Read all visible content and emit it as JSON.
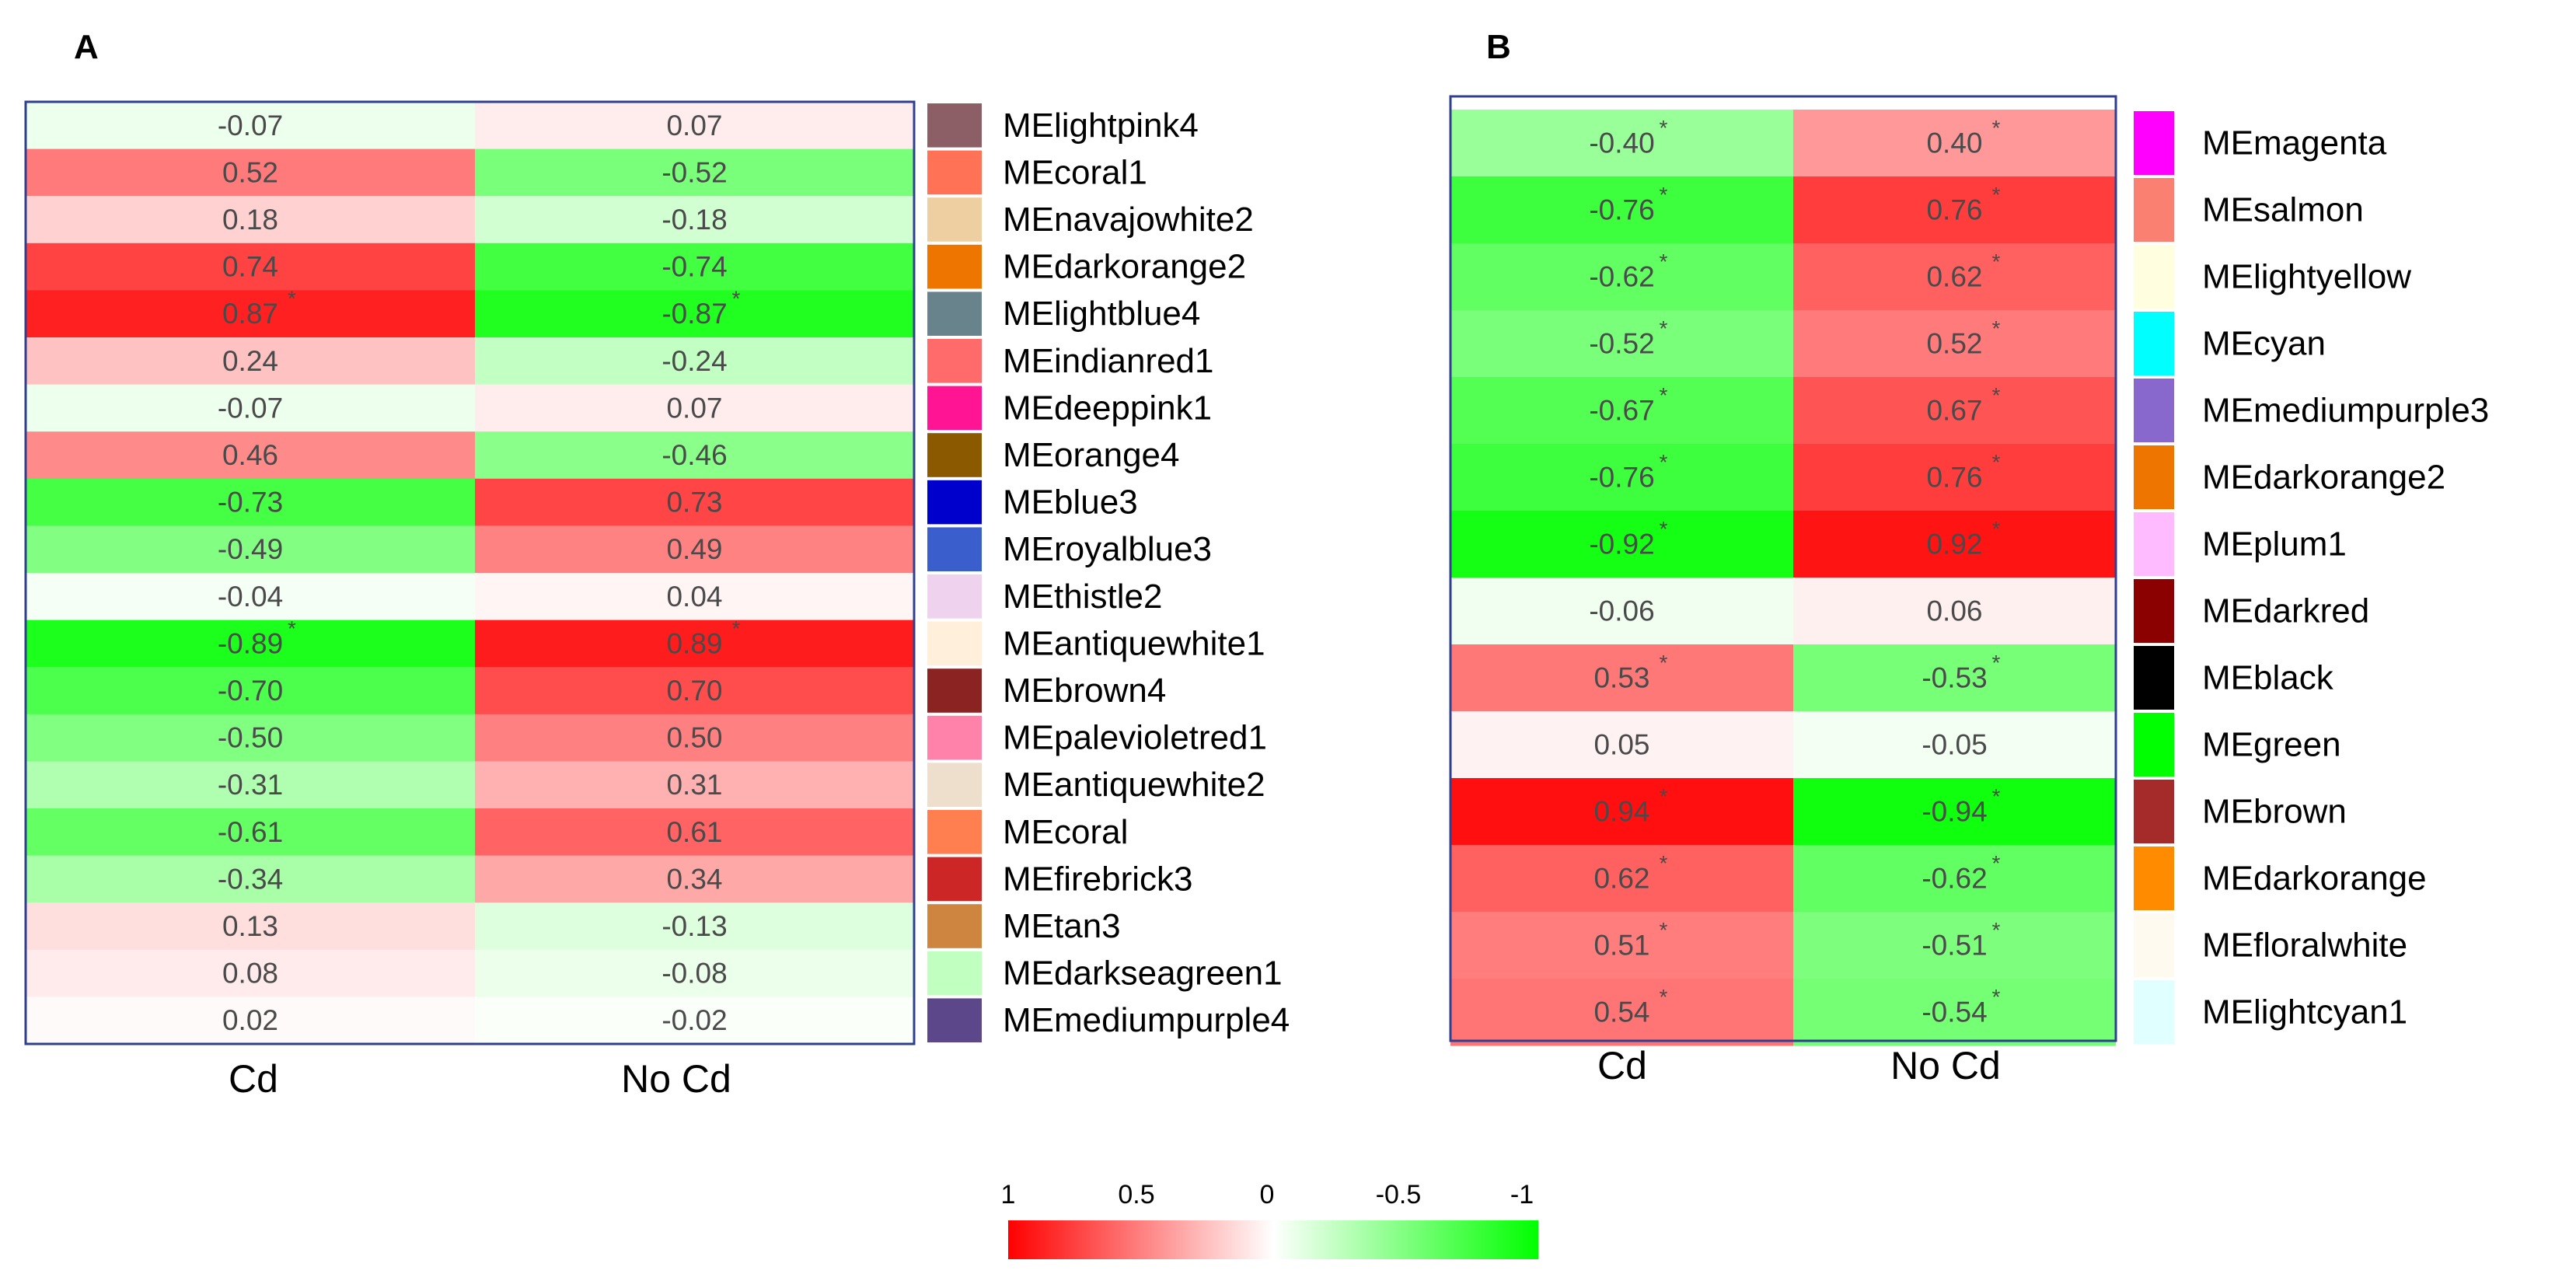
{
  "chart_data": [
    {
      "type": "heatmap",
      "panel_label": "A",
      "columns": [
        "Cd",
        "No Cd"
      ],
      "rows": [
        {
          "module": "MElightpink4",
          "color": "#8B5F65",
          "values": [
            -0.07,
            0.07
          ],
          "labels": [
            "-0.07",
            "0.07"
          ],
          "sig": [
            false,
            false
          ]
        },
        {
          "module": "MEcoral1",
          "color": "#FF7256",
          "values": [
            0.52,
            -0.52
          ],
          "labels": [
            "0.52",
            "-0.52"
          ],
          "sig": [
            false,
            false
          ]
        },
        {
          "module": "MEnavajowhite2",
          "color": "#EECFA1",
          "values": [
            0.18,
            -0.18
          ],
          "labels": [
            "0.18",
            "-0.18"
          ],
          "sig": [
            false,
            false
          ]
        },
        {
          "module": "MEdarkorange2",
          "color": "#EE7600",
          "values": [
            0.74,
            -0.74
          ],
          "labels": [
            "0.74",
            "-0.74"
          ],
          "sig": [
            false,
            false
          ]
        },
        {
          "module": "MElightblue4",
          "color": "#68838B",
          "values": [
            0.87,
            -0.87
          ],
          "labels": [
            "0.87",
            "-0.87"
          ],
          "sig": [
            true,
            true
          ]
        },
        {
          "module": "MEindianred1",
          "color": "#FF6A6A",
          "values": [
            0.24,
            -0.24
          ],
          "labels": [
            "0.24",
            "-0.24"
          ],
          "sig": [
            false,
            false
          ]
        },
        {
          "module": "MEdeeppink1",
          "color": "#FF1493",
          "values": [
            -0.07,
            0.07
          ],
          "labels": [
            "-0.07",
            "0.07"
          ],
          "sig": [
            false,
            false
          ]
        },
        {
          "module": "MEorange4",
          "color": "#8B5A00",
          "values": [
            0.46,
            -0.46
          ],
          "labels": [
            "0.46",
            "-0.46"
          ],
          "sig": [
            false,
            false
          ]
        },
        {
          "module": "MEblue3",
          "color": "#0000CD",
          "values": [
            -0.73,
            0.73
          ],
          "labels": [
            "-0.73",
            "0.73"
          ],
          "sig": [
            false,
            false
          ]
        },
        {
          "module": "MEroyalblue3",
          "color": "#3A5FCD",
          "values": [
            -0.49,
            0.49
          ],
          "labels": [
            "-0.49",
            "0.49"
          ],
          "sig": [
            false,
            false
          ]
        },
        {
          "module": "MEthistle2",
          "color": "#EED2EE",
          "values": [
            -0.04,
            0.04
          ],
          "labels": [
            "-0.04",
            "0.04"
          ],
          "sig": [
            false,
            false
          ]
        },
        {
          "module": "MEantiquewhite1",
          "color": "#FFEFDB",
          "values": [
            -0.89,
            0.89
          ],
          "labels": [
            "-0.89",
            "0.89"
          ],
          "sig": [
            true,
            true
          ]
        },
        {
          "module": "MEbrown4",
          "color": "#8B2323",
          "values": [
            -0.7,
            0.7
          ],
          "labels": [
            "-0.70",
            "0.70"
          ],
          "sig": [
            false,
            false
          ]
        },
        {
          "module": "MEpalevioletred1",
          "color": "#FF82AB",
          "values": [
            -0.5,
            0.5
          ],
          "labels": [
            "-0.50",
            "0.50"
          ],
          "sig": [
            false,
            false
          ]
        },
        {
          "module": "MEantiquewhite2",
          "color": "#EEDFCC",
          "values": [
            -0.31,
            0.31
          ],
          "labels": [
            "-0.31",
            "0.31"
          ],
          "sig": [
            false,
            false
          ]
        },
        {
          "module": "MEcoral",
          "color": "#FF7F50",
          "values": [
            -0.61,
            0.61
          ],
          "labels": [
            "-0.61",
            "0.61"
          ],
          "sig": [
            false,
            false
          ]
        },
        {
          "module": "MEfirebrick3",
          "color": "#CD2626",
          "values": [
            -0.34,
            0.34
          ],
          "labels": [
            "-0.34",
            "0.34"
          ],
          "sig": [
            false,
            false
          ]
        },
        {
          "module": "MEtan3",
          "color": "#CD853F",
          "values": [
            0.13,
            -0.13
          ],
          "labels": [
            "0.13",
            "-0.13"
          ],
          "sig": [
            false,
            false
          ]
        },
        {
          "module": "MEdarkseagreen1",
          "color": "#C1FFC1",
          "values": [
            0.08,
            -0.08
          ],
          "labels": [
            "0.08",
            "-0.08"
          ],
          "sig": [
            false,
            false
          ]
        },
        {
          "module": "MEmediumpurple4",
          "color": "#5D478B",
          "values": [
            0.02,
            -0.02
          ],
          "labels": [
            "0.02",
            "-0.02"
          ],
          "sig": [
            false,
            false
          ]
        }
      ]
    },
    {
      "type": "heatmap",
      "panel_label": "B",
      "columns": [
        "Cd",
        "No Cd"
      ],
      "rows": [
        {
          "module": "MEmagenta",
          "color": "#FF00FF",
          "values": [
            -0.4,
            0.4
          ],
          "labels": [
            "-0.40",
            "0.40"
          ],
          "sig": [
            true,
            true
          ]
        },
        {
          "module": "MEsalmon",
          "color": "#FA8072",
          "values": [
            -0.76,
            0.76
          ],
          "labels": [
            "-0.76",
            "0.76"
          ],
          "sig": [
            true,
            true
          ]
        },
        {
          "module": "MElightyellow",
          "color": "#FFFFE0",
          "values": [
            -0.62,
            0.62
          ],
          "labels": [
            "-0.62",
            "0.62"
          ],
          "sig": [
            true,
            true
          ]
        },
        {
          "module": "MEcyan",
          "color": "#00FFFF",
          "values": [
            -0.52,
            0.52
          ],
          "labels": [
            "-0.52",
            "0.52"
          ],
          "sig": [
            true,
            true
          ]
        },
        {
          "module": "MEmediumpurple3",
          "color": "#8968CD",
          "values": [
            -0.67,
            0.67
          ],
          "labels": [
            "-0.67",
            "0.67"
          ],
          "sig": [
            true,
            true
          ]
        },
        {
          "module": "MEdarkorange2",
          "color": "#EE7600",
          "values": [
            -0.76,
            0.76
          ],
          "labels": [
            "-0.76",
            "0.76"
          ],
          "sig": [
            true,
            true
          ]
        },
        {
          "module": "MEplum1",
          "color": "#FFBBFF",
          "values": [
            -0.92,
            0.92
          ],
          "labels": [
            "-0.92",
            "0.92"
          ],
          "sig": [
            true,
            true
          ]
        },
        {
          "module": "MEdarkred",
          "color": "#8B0000",
          "values": [
            -0.06,
            0.06
          ],
          "labels": [
            "-0.06",
            "0.06"
          ],
          "sig": [
            false,
            false
          ]
        },
        {
          "module": "MEblack",
          "color": "#000000",
          "values": [
            0.53,
            -0.53
          ],
          "labels": [
            "0.53",
            "-0.53"
          ],
          "sig": [
            true,
            true
          ]
        },
        {
          "module": "MEgreen",
          "color": "#00FF00",
          "values": [
            0.05,
            -0.05
          ],
          "labels": [
            "0.05",
            "-0.05"
          ],
          "sig": [
            false,
            false
          ]
        },
        {
          "module": "MEbrown",
          "color": "#A52A2A",
          "values": [
            0.94,
            -0.94
          ],
          "labels": [
            "0.94",
            "-0.94"
          ],
          "sig": [
            true,
            true
          ]
        },
        {
          "module": "MEdarkorange",
          "color": "#FF8C00",
          "values": [
            0.62,
            -0.62
          ],
          "labels": [
            "0.62",
            "-0.62"
          ],
          "sig": [
            true,
            true
          ]
        },
        {
          "module": "MEfloralwhite",
          "color": "#FFFAF0",
          "values": [
            0.51,
            -0.51
          ],
          "labels": [
            "0.51",
            "-0.51"
          ],
          "sig": [
            true,
            true
          ]
        },
        {
          "module": "MElightcyan1",
          "color": "#E0FFFF",
          "values": [
            0.54,
            -0.54
          ],
          "labels": [
            "0.54",
            "-0.54"
          ],
          "sig": [
            true,
            true
          ]
        }
      ]
    }
  ],
  "color_scale": {
    "tick_labels": [
      "1",
      "0.5",
      "0",
      "-0.5",
      "-1"
    ],
    "range": [
      1,
      -1
    ],
    "positive_color": "#FF0000",
    "neutral_color": "#FFFFFF",
    "negative_color": "#00FF00"
  },
  "sig_marker": "*",
  "frame_color": "#2F3F8F"
}
